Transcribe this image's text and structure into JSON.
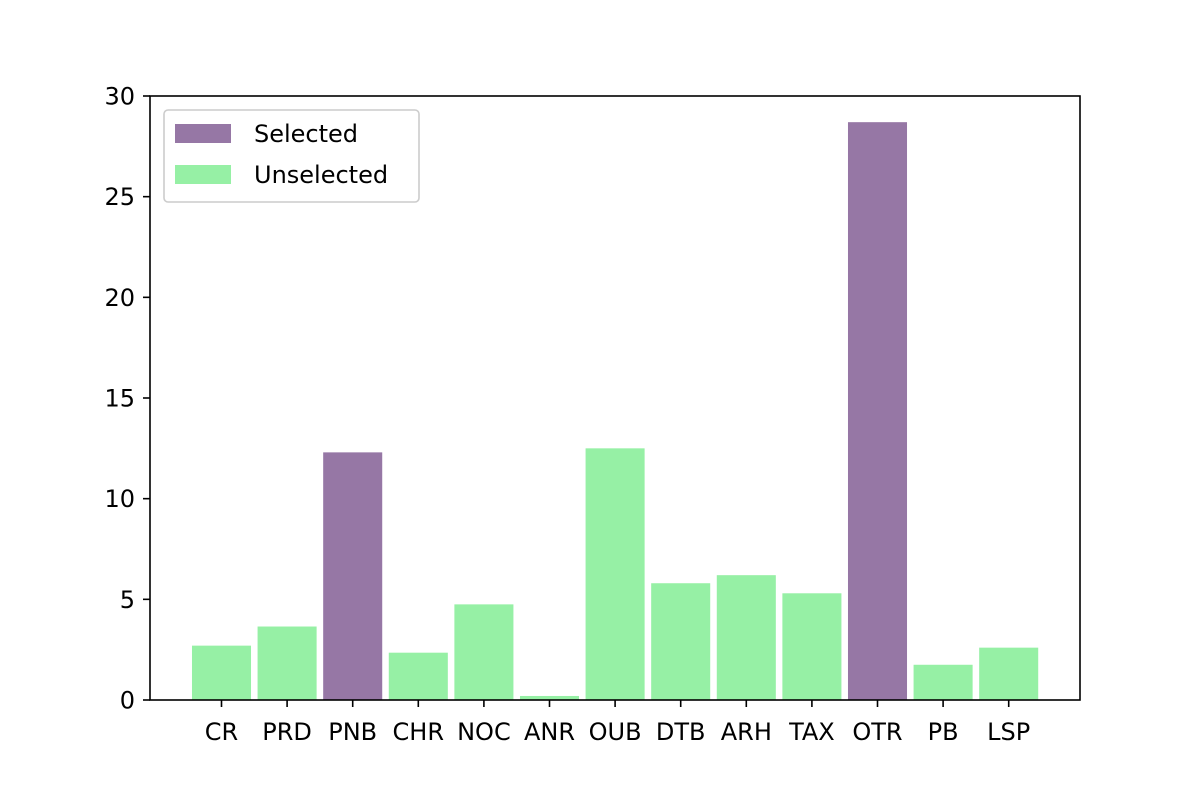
{
  "chart_data": {
    "type": "bar",
    "categories": [
      "CR",
      "PRD",
      "PNB",
      "CHR",
      "NOC",
      "ANR",
      "OUB",
      "DTB",
      "ARH",
      "TAX",
      "OTR",
      "PB",
      "LSP"
    ],
    "values": [
      2.7,
      3.65,
      12.3,
      2.35,
      4.75,
      0.2,
      12.5,
      5.8,
      6.2,
      5.3,
      28.7,
      1.75,
      2.6
    ],
    "selected": [
      false,
      false,
      true,
      false,
      false,
      false,
      false,
      false,
      false,
      false,
      true,
      false,
      false
    ],
    "series": [
      {
        "name": "Selected",
        "color": "#9677a5"
      },
      {
        "name": "Unselected",
        "color": "#96f0a5"
      }
    ],
    "title": "",
    "xlabel": "",
    "ylabel": "",
    "ylim": [
      0,
      30
    ],
    "yticks": [
      0,
      5,
      10,
      15,
      20,
      25,
      30
    ],
    "grid": false,
    "legend_position": "top-left"
  }
}
